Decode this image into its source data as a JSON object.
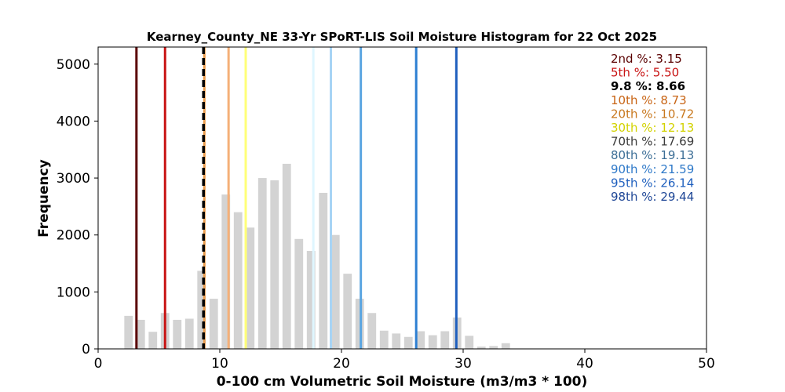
{
  "chart_data": {
    "type": "bar",
    "title": "Kearney_County_NE 33-Yr SPoRT-LIS Soil Moisture Histogram for 22 Oct 2025",
    "xlabel": "0-100 cm Volumetric Soil Moisture (m3/m3 * 100)",
    "ylabel": "Frequency",
    "xlim": [
      0,
      50
    ],
    "ylim": [
      0,
      5300
    ],
    "xticks": [
      "0",
      "10",
      "20",
      "30",
      "40",
      "50"
    ],
    "yticks": [
      "0",
      "1000",
      "2000",
      "3000",
      "4000",
      "5000"
    ],
    "bars": [
      {
        "x": 2.5,
        "y": 580
      },
      {
        "x": 3.5,
        "y": 510
      },
      {
        "x": 4.5,
        "y": 300
      },
      {
        "x": 5.5,
        "y": 630
      },
      {
        "x": 6.5,
        "y": 510
      },
      {
        "x": 7.5,
        "y": 530
      },
      {
        "x": 8.5,
        "y": 1370
      },
      {
        "x": 9.5,
        "y": 880
      },
      {
        "x": 10.5,
        "y": 2710
      },
      {
        "x": 11.5,
        "y": 2400
      },
      {
        "x": 12.5,
        "y": 2130
      },
      {
        "x": 13.5,
        "y": 3000
      },
      {
        "x": 14.5,
        "y": 2960
      },
      {
        "x": 15.5,
        "y": 3250
      },
      {
        "x": 16.5,
        "y": 1930
      },
      {
        "x": 17.5,
        "y": 1720
      },
      {
        "x": 18.5,
        "y": 2740
      },
      {
        "x": 19.5,
        "y": 2000
      },
      {
        "x": 20.5,
        "y": 1320
      },
      {
        "x": 21.5,
        "y": 880
      },
      {
        "x": 22.5,
        "y": 630
      },
      {
        "x": 23.5,
        "y": 320
      },
      {
        "x": 24.5,
        "y": 270
      },
      {
        "x": 25.5,
        "y": 210
      },
      {
        "x": 26.5,
        "y": 310
      },
      {
        "x": 27.5,
        "y": 240
      },
      {
        "x": 28.5,
        "y": 310
      },
      {
        "x": 29.5,
        "y": 550
      },
      {
        "x": 30.5,
        "y": 230
      },
      {
        "x": 31.5,
        "y": 40
      },
      {
        "x": 32.5,
        "y": 50
      },
      {
        "x": 33.5,
        "y": 100
      }
    ],
    "bar_color": "#d3d3d3",
    "bar_width": 0.7,
    "percentile_lines": [
      {
        "label": "2nd %: 3.15",
        "value": 3.15,
        "color": "#5a0000",
        "style": "solid"
      },
      {
        "label": "5th %: 5.50",
        "value": 5.5,
        "color": "#c81414",
        "style": "solid"
      },
      {
        "label": "10th %: 8.73",
        "value": 8.73,
        "color": "#e89a4a",
        "style": "solid"
      },
      {
        "label": "20th %: 10.72",
        "value": 10.72,
        "color": "#f5b078",
        "style": "solid"
      },
      {
        "label": "30th %: 12.13",
        "value": 12.13,
        "color": "#ffff78",
        "style": "solid"
      },
      {
        "label": "70th %: 17.69",
        "value": 17.69,
        "color": "#dff6ff",
        "style": "solid"
      },
      {
        "label": "80th %: 19.13",
        "value": 19.13,
        "color": "#a7d4f5",
        "style": "solid"
      },
      {
        "label": "90th %: 21.59",
        "value": 21.59,
        "color": "#5aa5e1",
        "style": "solid"
      },
      {
        "label": "95th %: 26.14",
        "value": 26.14,
        "color": "#2d7fd2",
        "style": "solid"
      },
      {
        "label": "98th %: 29.44",
        "value": 29.44,
        "color": "#1e5fbe",
        "style": "solid"
      },
      {
        "label": "9.8 %: 8.66",
        "value": 8.66,
        "color": "#000000",
        "style": "dashed"
      }
    ],
    "legend": {
      "placement": "top-right",
      "entries": [
        {
          "text": "2nd %: 3.15",
          "color": "#5a0000"
        },
        {
          "text": "5th %: 5.50",
          "color": "#c81414"
        },
        {
          "text": "9.8 %: 8.66",
          "color": "#000000",
          "bold": true
        },
        {
          "text": "10th %: 8.73",
          "color": "#c86414"
        },
        {
          "text": "20th %: 10.72",
          "color": "#c8781e"
        },
        {
          "text": "30th %: 12.13",
          "color": "#d2d200"
        },
        {
          "text": "70th %: 17.69",
          "color": "#3c3c3c"
        },
        {
          "text": "80th %: 19.13",
          "color": "#3c6e96"
        },
        {
          "text": "90th %: 21.59",
          "color": "#2d78c8"
        },
        {
          "text": "95th %: 26.14",
          "color": "#1e5fbe"
        },
        {
          "text": "98th %: 29.44",
          "color": "#1e4696"
        }
      ]
    },
    "grid": false
  }
}
